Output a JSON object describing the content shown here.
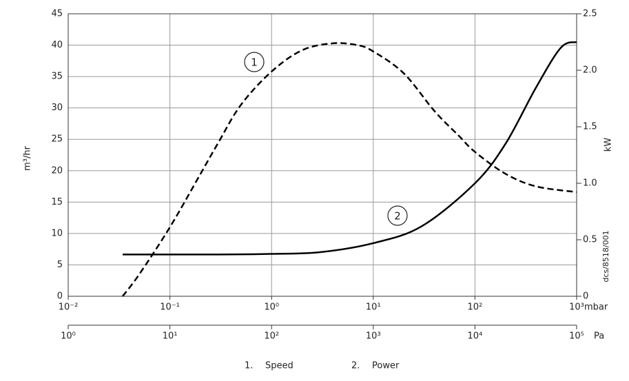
{
  "chart_data": {
    "type": "line",
    "xlabel": "mbar",
    "x2label": "Pa",
    "ylabel": "m³/hr",
    "y2label": "kW",
    "annotation": "dcs/8518/001",
    "log_x": true,
    "grid": true,
    "xlim": [
      0.01,
      1000
    ],
    "xticks": [
      {
        "value": 0.01,
        "label": "10⁻²"
      },
      {
        "value": 0.1,
        "label": "10⁻¹"
      },
      {
        "value": 1,
        "label": "10⁰"
      },
      {
        "value": 10,
        "label": "10¹"
      },
      {
        "value": 100,
        "label": "10²"
      },
      {
        "value": 1000,
        "label": "10³"
      }
    ],
    "x2lim": [
      1,
      100000
    ],
    "x2ticks": [
      {
        "value": 1,
        "label": "10⁰"
      },
      {
        "value": 10,
        "label": "10¹"
      },
      {
        "value": 100,
        "label": "10²"
      },
      {
        "value": 1000,
        "label": "10³"
      },
      {
        "value": 10000,
        "label": "10⁴"
      },
      {
        "value": 100000,
        "label": "10⁵"
      }
    ],
    "ylim": [
      0,
      45
    ],
    "yticks": [
      0,
      5,
      10,
      15,
      20,
      25,
      30,
      35,
      40,
      45
    ],
    "y2lim": [
      0,
      2.5
    ],
    "y2ticks": [
      0,
      0.5,
      {
        "value": 1,
        "label": "1.0"
      },
      1.5,
      {
        "value": 2,
        "label": "2.0"
      },
      2.5
    ],
    "series": [
      {
        "name": "Speed",
        "marker_label": "1",
        "legend_number": "1.",
        "color": "#000000",
        "line_style": "dashed",
        "axis": "y",
        "x": [
          0.0343,
          0.05,
          0.1,
          0.2,
          0.3,
          0.5,
          1,
          2,
          4,
          7,
          10,
          20,
          40,
          70,
          100,
          200,
          400,
          1000
        ],
        "values": [
          0,
          3.5,
          11,
          19.5,
          24.5,
          30.5,
          35.8,
          39.2,
          40.3,
          40,
          39,
          35.5,
          29.5,
          25.5,
          23,
          19.5,
          17.5,
          16.6
        ]
      },
      {
        "name": "Power",
        "marker_label": "2",
        "legend_number": "2.",
        "color": "#000000",
        "line_style": "solid",
        "axis": "y2",
        "x": [
          0.0343,
          0.3,
          1,
          3,
          10,
          30,
          100,
          200,
          400,
          700,
          1000
        ],
        "values": [
          0.37,
          0.37,
          0.375,
          0.39,
          0.47,
          0.62,
          1.0,
          1.35,
          1.85,
          2.2,
          2.25
        ]
      }
    ]
  }
}
